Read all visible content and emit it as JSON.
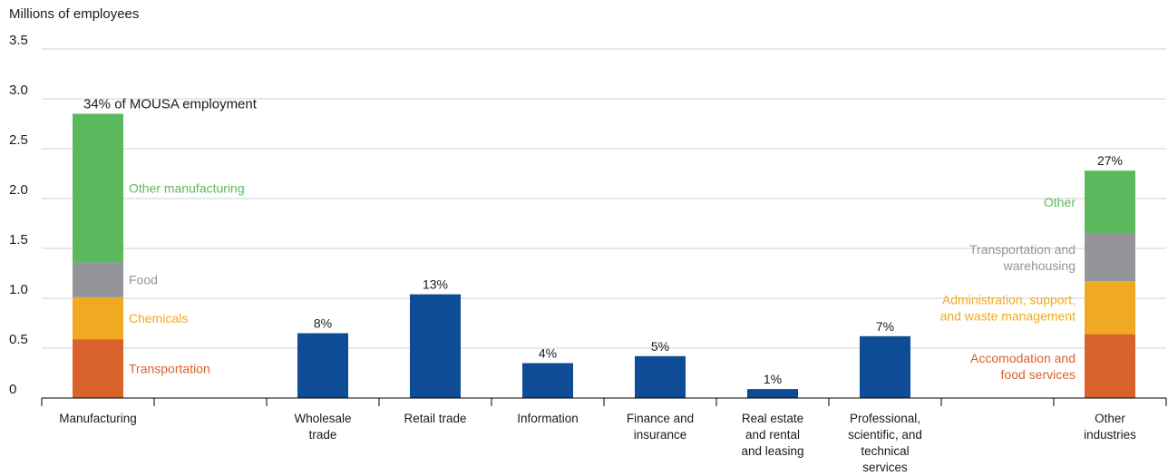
{
  "chart_data": {
    "type": "bar",
    "ylabel": "Millions of employees",
    "ylim": [
      0,
      3.5
    ],
    "yticks": [
      "0",
      "0.5",
      "1.0",
      "1.5",
      "2.0",
      "2.5",
      "3.0",
      "3.5"
    ],
    "grid": true,
    "categories": [
      "Manufacturing",
      "",
      "Wholesale trade",
      "Retail trade",
      "Information",
      "Finance and insurance",
      "Real estate and rental and leasing",
      "Professional, scientific, and technical services",
      "",
      "Other industries"
    ],
    "category_label_lines": [
      [
        "Manufacturing"
      ],
      [],
      [
        "Wholesale",
        "trade"
      ],
      [
        "Retail trade"
      ],
      [
        "Information"
      ],
      [
        "Finance and",
        "insurance"
      ],
      [
        "Real estate",
        "and rental",
        "and leasing"
      ],
      [
        "Professional,",
        "scientific, and",
        "technical",
        "services"
      ],
      [],
      [
        "Other",
        "industries"
      ]
    ],
    "simple_bars": [
      {
        "category_index": 2,
        "value": 0.65,
        "label": "8%"
      },
      {
        "category_index": 3,
        "value": 1.04,
        "label": "13%"
      },
      {
        "category_index": 4,
        "value": 0.35,
        "label": "4%"
      },
      {
        "category_index": 5,
        "value": 0.42,
        "label": "5%"
      },
      {
        "category_index": 6,
        "value": 0.09,
        "label": "1%"
      },
      {
        "category_index": 7,
        "value": 0.62,
        "label": "7%"
      }
    ],
    "stacked_bars": [
      {
        "category_index": 0,
        "total_label": "34% of MOUSA employment",
        "segment_label_side": "right",
        "segments": [
          {
            "name": "Transportation",
            "value": 0.59,
            "color": "#d9622b",
            "label_lines": [
              "Transportation"
            ]
          },
          {
            "name": "Chemicals",
            "value": 0.42,
            "color": "#f0a921",
            "label_lines": [
              "Chemicals"
            ]
          },
          {
            "name": "Food",
            "value": 0.35,
            "color": "#939598",
            "label_lines": [
              "Food"
            ]
          },
          {
            "name": "Other manufacturing",
            "value": 1.49,
            "color": "#5cb85c",
            "label_lines": [
              "Other manufacturing"
            ]
          }
        ]
      },
      {
        "category_index": 9,
        "total_label": "27%",
        "segment_label_side": "left",
        "segments": [
          {
            "name": "Accomodation and food services",
            "value": 0.64,
            "color": "#d9622b",
            "label_lines": [
              "Accomodation and",
              "food services"
            ]
          },
          {
            "name": "Administration, support, and waste management",
            "value": 0.53,
            "color": "#f0a921",
            "label_lines": [
              "Administration, support,",
              "and waste management"
            ]
          },
          {
            "name": "Transportation and warehousing",
            "value": 0.48,
            "color": "#939598",
            "label_lines": [
              "Transportation and",
              "warehousing"
            ]
          },
          {
            "name": "Other",
            "value": 0.63,
            "color": "#5cb85c",
            "label_lines": [
              "Other"
            ]
          }
        ]
      }
    ],
    "colors": {
      "bar": "#0f4c96",
      "grid": "#cfd2d6",
      "axis": "#000000",
      "text": "#1a1a1a"
    }
  }
}
